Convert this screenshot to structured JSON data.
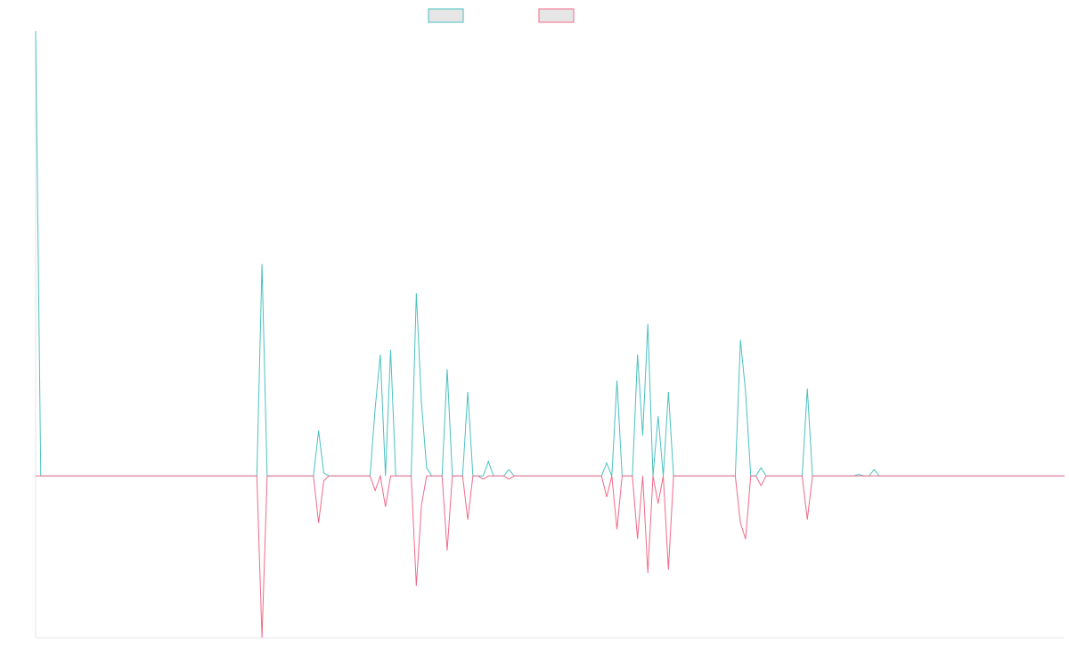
{
  "chart_data": {
    "type": "line",
    "title": "",
    "xlabel": "",
    "ylabel": "",
    "grid": false,
    "legend": "top-center",
    "x_count": 201,
    "ylim": [
      -0.1,
      0.275
    ],
    "series": [
      {
        "color": "#4bc0c0",
        "fill": "#e6e6e6",
        "points": [
          [
            0,
            0.275
          ],
          [
            1,
            0
          ],
          [
            43,
            0
          ],
          [
            44,
            0.131
          ],
          [
            45,
            0
          ],
          [
            54,
            0
          ],
          [
            55,
            0.028
          ],
          [
            56,
            0.002
          ],
          [
            57,
            0
          ],
          [
            65,
            0
          ],
          [
            66,
            0.042
          ],
          [
            67,
            0.075
          ],
          [
            68,
            0
          ],
          [
            69,
            0.078
          ],
          [
            70,
            0
          ],
          [
            73,
            0
          ],
          [
            74,
            0.113
          ],
          [
            75,
            0.045
          ],
          [
            76,
            0.005
          ],
          [
            77,
            0
          ],
          [
            79,
            0
          ],
          [
            80,
            0.066
          ],
          [
            81,
            0
          ],
          [
            83,
            0
          ],
          [
            84,
            0.052
          ],
          [
            85,
            0
          ],
          [
            87,
            0
          ],
          [
            88,
            0.009
          ],
          [
            89,
            0
          ],
          [
            91,
            0
          ],
          [
            92,
            0.004
          ],
          [
            93,
            0
          ],
          [
            110,
            0
          ],
          [
            111,
            0.008
          ],
          [
            112,
            0
          ],
          [
            113,
            0.059
          ],
          [
            114,
            0
          ],
          [
            116,
            0
          ],
          [
            117,
            0.075
          ],
          [
            118,
            0.025
          ],
          [
            119,
            0.094
          ],
          [
            120,
            0
          ],
          [
            121,
            0.037
          ],
          [
            122,
            0
          ],
          [
            123,
            0.052
          ],
          [
            124,
            0
          ],
          [
            136,
            0
          ],
          [
            137,
            0.084
          ],
          [
            138,
            0.052
          ],
          [
            139,
            0
          ],
          [
            140,
            0
          ],
          [
            141,
            0.005
          ],
          [
            142,
            0
          ],
          [
            149,
            0
          ],
          [
            150,
            0.054
          ],
          [
            151,
            0
          ],
          [
            159,
            0
          ],
          [
            160,
            0.001
          ],
          [
            161,
            0
          ],
          [
            162,
            0
          ],
          [
            163,
            0.004
          ],
          [
            164,
            0
          ],
          [
            200,
            0
          ]
        ]
      },
      {
        "color": "#f06a8a",
        "fill": "#e6e6e6",
        "points": [
          [
            0,
            0
          ],
          [
            43,
            0
          ],
          [
            44,
            -0.1
          ],
          [
            45,
            0
          ],
          [
            54,
            0
          ],
          [
            55,
            -0.029
          ],
          [
            56,
            -0.003
          ],
          [
            57,
            0
          ],
          [
            65,
            0
          ],
          [
            66,
            -0.009
          ],
          [
            67,
            0
          ],
          [
            68,
            -0.019
          ],
          [
            69,
            0
          ],
          [
            73,
            0
          ],
          [
            74,
            -0.068
          ],
          [
            75,
            -0.018
          ],
          [
            76,
            0
          ],
          [
            77,
            0
          ],
          [
            79,
            0
          ],
          [
            80,
            -0.046
          ],
          [
            81,
            0
          ],
          [
            83,
            0
          ],
          [
            84,
            -0.027
          ],
          [
            85,
            0
          ],
          [
            86,
            0
          ],
          [
            87,
            -0.002
          ],
          [
            88,
            0
          ],
          [
            91,
            0
          ],
          [
            92,
            -0.002
          ],
          [
            93,
            0
          ],
          [
            110,
            0
          ],
          [
            111,
            -0.013
          ],
          [
            112,
            0
          ],
          [
            113,
            -0.033
          ],
          [
            114,
            0
          ],
          [
            116,
            0
          ],
          [
            117,
            -0.039
          ],
          [
            118,
            0
          ],
          [
            119,
            -0.06
          ],
          [
            120,
            0
          ],
          [
            121,
            -0.017
          ],
          [
            122,
            0
          ],
          [
            123,
            -0.058
          ],
          [
            124,
            0
          ],
          [
            136,
            0
          ],
          [
            137,
            -0.029
          ],
          [
            138,
            -0.039
          ],
          [
            139,
            0
          ],
          [
            140,
            0
          ],
          [
            141,
            -0.006
          ],
          [
            142,
            0
          ],
          [
            149,
            0
          ],
          [
            150,
            -0.027
          ],
          [
            151,
            0
          ],
          [
            200,
            0
          ]
        ]
      }
    ]
  }
}
